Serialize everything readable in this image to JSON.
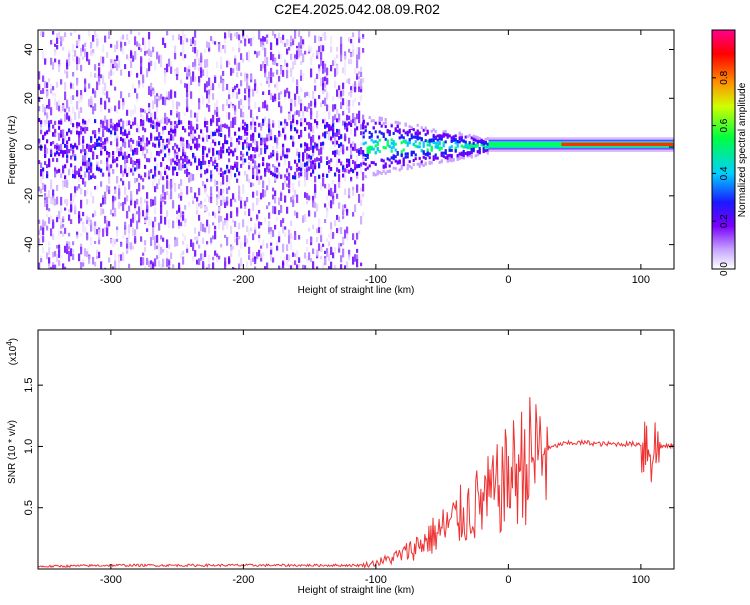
{
  "title": "C2E4.2025.042.08.09.R02",
  "colorbar": {
    "label": "Normalized spectral amplitude",
    "ticks": [
      "0.0",
      "0.2",
      "0.4",
      "0.6",
      "0.8"
    ],
    "tick_values": [
      0.0,
      0.2,
      0.4,
      0.6,
      0.8
    ],
    "range": [
      0,
      1
    ]
  },
  "chart_data": [
    {
      "type": "heatmap",
      "xlabel": "Height of straight line (km)",
      "ylabel": "Frequency (Hz)",
      "xlim": [
        -355,
        125
      ],
      "ylim": [
        -50,
        48
      ],
      "xticks": [
        -300,
        -200,
        -100,
        0,
        100
      ],
      "yticks": [
        -40,
        -20,
        0,
        20,
        40
      ],
      "x_tick_labels": [
        "-300",
        "-200",
        "-100",
        "0",
        "100"
      ],
      "y_tick_labels": [
        "-40",
        "-20",
        "0",
        "20",
        "40"
      ],
      "colormap": [
        "#ffffff",
        "#8a00ff",
        "#0000ff",
        "#00c8ff",
        "#00ff00",
        "#ffff00",
        "#ff8000",
        "#ff0000",
        "#ff0090"
      ],
      "description_regions": [
        {
          "x_range": [
            -355,
            -110
          ],
          "y_range": [
            -50,
            48
          ],
          "amplitude": 0.05
        },
        {
          "x_range": [
            -110,
            -15
          ],
          "y_range": [
            -12,
            10
          ],
          "amplitude": 0.4
        },
        {
          "x_range": [
            -15,
            125
          ],
          "y_range": [
            -1,
            3
          ],
          "amplitude": 0.9
        }
      ]
    },
    {
      "type": "line",
      "xlabel": "Height of straight line (km)",
      "ylabel": "SNR (10 * v/v)",
      "y_multiplier_label": "(x10",
      "y_multiplier_exp": "4",
      "y_multiplier_close": ")",
      "xlim": [
        -355,
        125
      ],
      "ylim": [
        0,
        1.95
      ],
      "xticks": [
        -300,
        -200,
        -100,
        0,
        100
      ],
      "yticks": [
        0.5,
        1.0,
        1.5
      ],
      "x_tick_labels": [
        "-300",
        "-200",
        "-100",
        "0",
        "100"
      ],
      "y_tick_labels": [
        "0.5",
        "1.0",
        "1.5"
      ],
      "color": "#ee3333",
      "series": [
        {
          "x": [
            -355,
            -300,
            -250,
            -200,
            -150,
            -110,
            -100,
            -90,
            -80,
            -70,
            -60,
            -50,
            -40,
            -30,
            -20,
            -10,
            0,
            10,
            20,
            30,
            40,
            50,
            60,
            70,
            80,
            90,
            100,
            105,
            110,
            115,
            120,
            125
          ],
          "y": [
            0.02,
            0.03,
            0.03,
            0.03,
            0.03,
            0.03,
            0.05,
            0.08,
            0.12,
            0.18,
            0.25,
            0.32,
            0.4,
            0.48,
            0.55,
            0.62,
            0.75,
            0.85,
            0.93,
            0.98,
            1.02,
            1.03,
            1.03,
            1.02,
            1.02,
            1.02,
            1.02,
            1.05,
            0.95,
            1.0,
            1.0,
            1.01
          ]
        }
      ]
    }
  ]
}
